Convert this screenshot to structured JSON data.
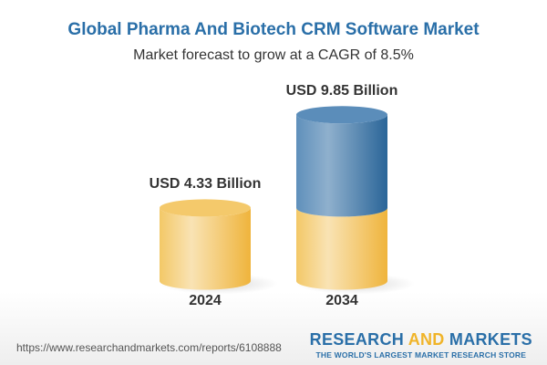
{
  "chart_data": {
    "type": "bar",
    "style": "3d-cylinder",
    "title": "Global Pharma And Biotech CRM Software Market",
    "subtitle": "Market forecast to grow at a CAGR of 8.5%",
    "categories": [
      "2024",
      "2034"
    ],
    "values": [
      4.33,
      9.85
    ],
    "data_labels": [
      "USD 4.33 Billion",
      "USD 9.85 Billion"
    ],
    "unit": "USD Billion",
    "grid": false,
    "colors": {
      "base": "#f2c45a",
      "growth": "#3f7cae"
    }
  },
  "footer": {
    "url": "https://www.researchandmarkets.com/reports/6108888",
    "logo_part1": "RESEARCH ",
    "logo_part2": "AND",
    "logo_part3": " MARKETS",
    "tagline": "THE WORLD'S LARGEST MARKET RESEARCH STORE"
  }
}
